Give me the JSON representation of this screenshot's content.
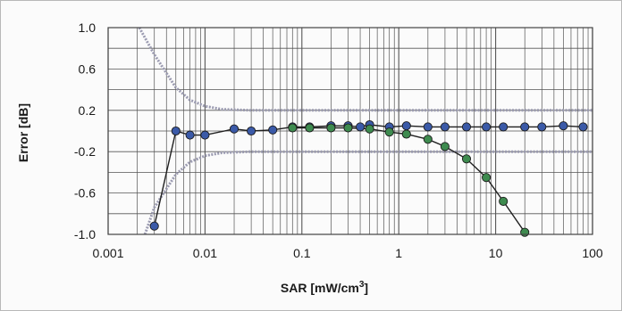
{
  "chart_data": {
    "type": "scatter",
    "title": "",
    "xlabel": {
      "text": "SAR [mW/cm",
      "sup": "3",
      "suffix": "]"
    },
    "ylabel": "Error [dB]",
    "x_scale": "log",
    "xlim": [
      0.001,
      100
    ],
    "ylim": [
      -1.0,
      1.0
    ],
    "x_ticks": [
      0.001,
      0.01,
      0.1,
      1,
      10,
      100
    ],
    "x_tick_labels": [
      "0.001",
      "0.01",
      "0.1",
      "1",
      "10",
      "100"
    ],
    "y_ticks": [
      -1.0,
      -0.6,
      -0.2,
      0.2,
      0.6,
      1.0
    ],
    "y_tick_labels": [
      "-1.0",
      "-0.6",
      "-0.2",
      "0.2",
      "0.6",
      "1.0"
    ],
    "grid": true,
    "legend": "none",
    "series": [
      {
        "color": "#3b5aa8",
        "points": [
          [
            0.003,
            -0.92
          ],
          [
            0.005,
            0.0
          ],
          [
            0.007,
            -0.04
          ],
          [
            0.01,
            -0.04
          ],
          [
            0.02,
            0.02
          ],
          [
            0.03,
            0.0
          ],
          [
            0.05,
            0.01
          ],
          [
            0.08,
            0.04
          ],
          [
            0.12,
            0.04
          ],
          [
            0.2,
            0.05
          ],
          [
            0.3,
            0.05
          ],
          [
            0.4,
            0.04
          ],
          [
            0.5,
            0.06
          ],
          [
            0.8,
            0.04
          ],
          [
            1.2,
            0.05
          ],
          [
            2,
            0.04
          ],
          [
            3,
            0.04
          ],
          [
            5,
            0.04
          ],
          [
            8,
            0.04
          ],
          [
            12,
            0.04
          ],
          [
            20,
            0.04
          ],
          [
            30,
            0.04
          ],
          [
            50,
            0.05
          ],
          [
            80,
            0.04
          ]
        ]
      },
      {
        "color": "#3e8b4f",
        "points": [
          [
            0.08,
            0.03
          ],
          [
            0.12,
            0.03
          ],
          [
            0.2,
            0.03
          ],
          [
            0.3,
            0.03
          ],
          [
            0.5,
            0.02
          ],
          [
            0.8,
            -0.01
          ],
          [
            1.2,
            -0.03
          ],
          [
            2,
            -0.08
          ],
          [
            3,
            -0.15
          ],
          [
            5,
            -0.27
          ],
          [
            8,
            -0.45
          ],
          [
            12,
            -0.68
          ],
          [
            20,
            -0.98
          ]
        ]
      }
    ],
    "uncertainty_band": {
      "color": "#9a9ab0",
      "upper": [
        [
          0.0021,
          1.0
        ],
        [
          0.003,
          0.74
        ],
        [
          0.005,
          0.42
        ],
        [
          0.007,
          0.3
        ],
        [
          0.01,
          0.24
        ],
        [
          0.015,
          0.21
        ],
        [
          0.03,
          0.2
        ],
        [
          100,
          0.2
        ]
      ],
      "lower": [
        [
          0.0024,
          -1.0
        ],
        [
          0.003,
          -0.74
        ],
        [
          0.005,
          -0.42
        ],
        [
          0.007,
          -0.3
        ],
        [
          0.01,
          -0.24
        ],
        [
          0.015,
          -0.21
        ],
        [
          0.03,
          -0.2
        ],
        [
          100,
          -0.2
        ]
      ]
    },
    "colors": {
      "axis": "#444444",
      "grid": "#555555",
      "connector": "#1f1f1f"
    }
  }
}
